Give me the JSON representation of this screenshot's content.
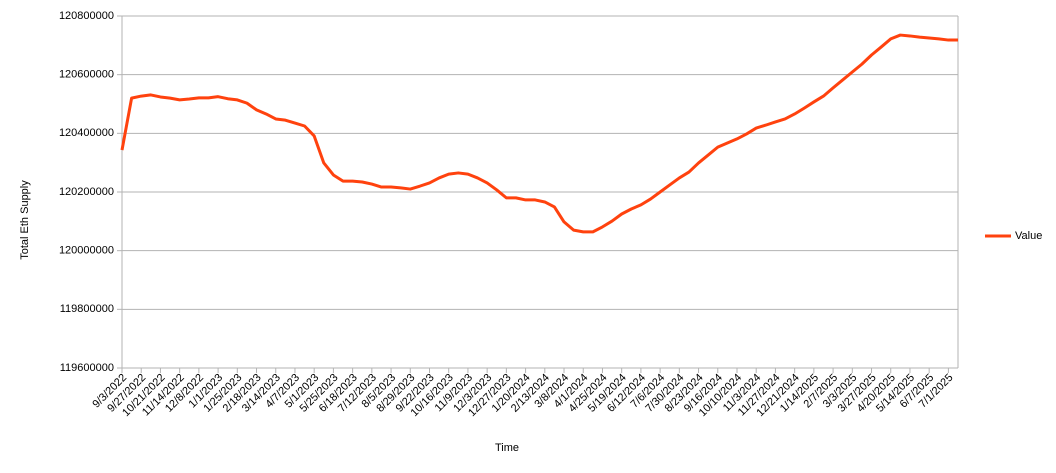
{
  "chart_data": {
    "type": "line",
    "x_label": "Time",
    "y_label": "Total Eth Supply",
    "categories": [
      "9/3/2022",
      null,
      "9/27/2022",
      null,
      "10/21/2022",
      null,
      "11/14/2022",
      null,
      "12/8/2022",
      null,
      "1/1/2023",
      null,
      "1/25/2023",
      null,
      "2/18/2023",
      null,
      "3/14/2023",
      null,
      "4/7/2023",
      null,
      "5/1/2023",
      null,
      "5/25/2023",
      null,
      "6/18/2023",
      null,
      "7/12/2023",
      null,
      "8/5/2023",
      null,
      "8/29/2023",
      null,
      "9/22/2023",
      null,
      "10/16/2023",
      null,
      "11/9/2023",
      null,
      "12/3/2023",
      null,
      "12/27/2023",
      null,
      "1/20/2024",
      null,
      "2/13/2024",
      null,
      "3/8/2024",
      null,
      "4/1/2024",
      null,
      "4/25/2024",
      null,
      "5/19/2024",
      null,
      "6/12/2024",
      null,
      "7/6/2024",
      null,
      "7/30/2024",
      null,
      "8/23/2024",
      null,
      "9/16/2024",
      null,
      "10/10/2024",
      null,
      "11/3/2024",
      null,
      "11/27/2024",
      null,
      "12/21/2024",
      null,
      "1/14/2025",
      null,
      "2/7/2025",
      null,
      "3/3/2025",
      null,
      "3/27/2025",
      null,
      "4/20/2025",
      null,
      "5/14/2025",
      null,
      "6/7/2025",
      null,
      "7/1/2025",
      null
    ],
    "series": [
      {
        "name": "Value",
        "color": "#ff420e",
        "values": [
          120343000,
          120520000,
          120527000,
          120531000,
          120524000,
          120520000,
          120514000,
          120517000,
          120521000,
          120521000,
          120525000,
          120518000,
          120514000,
          120503000,
          120480000,
          120466000,
          120449000,
          120445000,
          120435000,
          120425000,
          120391000,
          120299000,
          120258000,
          120237000,
          120237000,
          120234000,
          120227000,
          120217000,
          120217000,
          120214000,
          120210000,
          120220000,
          120231000,
          120248000,
          120261000,
          120265000,
          120261000,
          120248000,
          120231000,
          120207000,
          120180000,
          120180000,
          120173000,
          120173000,
          120166000,
          120149000,
          120098000,
          120070000,
          120064000,
          120064000,
          120081000,
          120101000,
          120125000,
          120142000,
          120156000,
          120176000,
          120200000,
          120224000,
          120248000,
          120268000,
          120299000,
          120326000,
          120353000,
          120367000,
          120381000,
          120398000,
          120418000,
          120428000,
          120439000,
          120449000,
          120466000,
          120486000,
          120507000,
          120527000,
          120555000,
          120582000,
          120609000,
          120636000,
          120667000,
          120694000,
          120722000,
          120735000,
          120732000,
          120728000,
          120725000,
          120722000,
          120718000,
          120718000
        ]
      }
    ],
    "ylim": [
      119600000,
      120800000
    ],
    "yticks": [
      119600000,
      119800000,
      120000000,
      120200000,
      120400000,
      120600000,
      120800000
    ],
    "grid": true,
    "legend": "right"
  }
}
